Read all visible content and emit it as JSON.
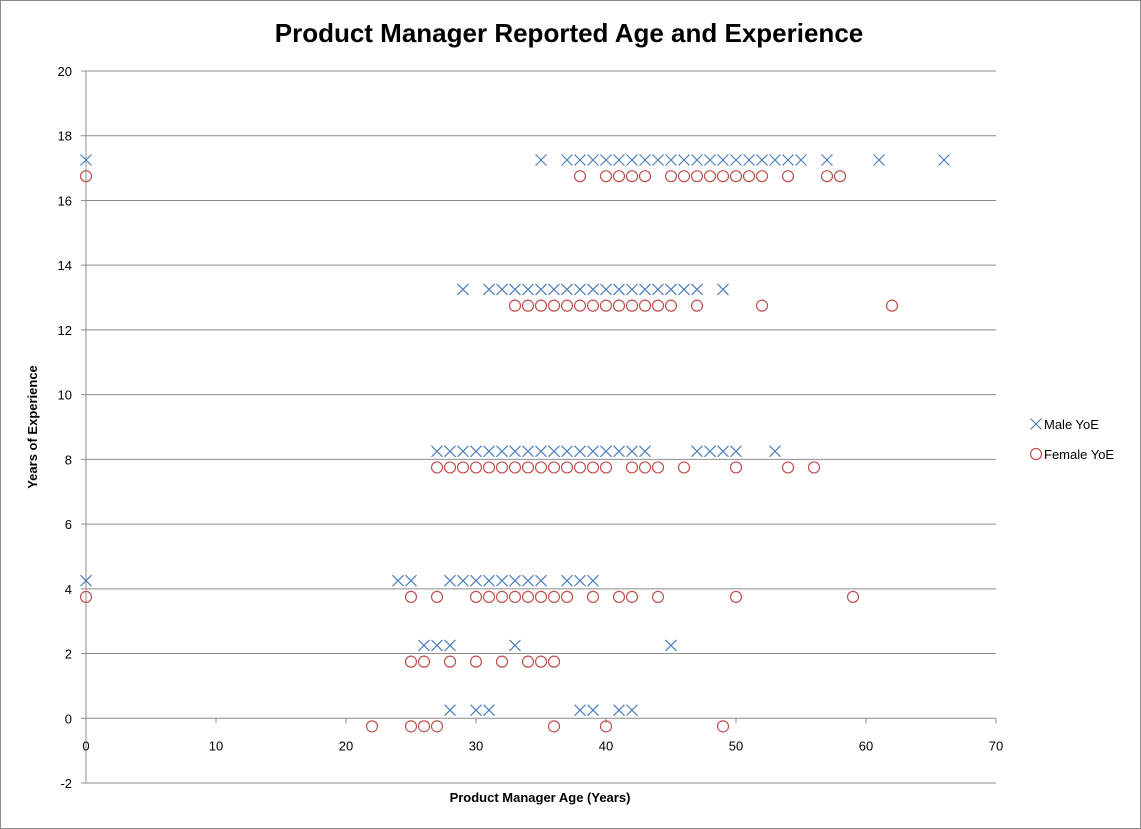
{
  "chart_data": {
    "type": "scatter",
    "title": "Product Manager Reported Age and Experience",
    "xlabel": "Product Manager Age (Years)",
    "ylabel": "Years of Experience",
    "xlim": [
      0,
      70
    ],
    "ylim": [
      -2,
      20
    ],
    "x_ticks": [
      0,
      10,
      20,
      30,
      40,
      50,
      60,
      70
    ],
    "y_ticks": [
      -2,
      0,
      2,
      4,
      6,
      8,
      10,
      12,
      14,
      16,
      18,
      20
    ],
    "grid": "horizontal",
    "legend_position": "right",
    "colors": {
      "male": "#4f81bd",
      "female": "#c0504d"
    },
    "series": [
      {
        "name": "Male YoE",
        "marker": "x",
        "points": [
          [
            0,
            17.25
          ],
          [
            35,
            17.25
          ],
          [
            37,
            17.25
          ],
          [
            38,
            17.25
          ],
          [
            39,
            17.25
          ],
          [
            40,
            17.25
          ],
          [
            41,
            17.25
          ],
          [
            42,
            17.25
          ],
          [
            43,
            17.25
          ],
          [
            44,
            17.25
          ],
          [
            45,
            17.25
          ],
          [
            46,
            17.25
          ],
          [
            47,
            17.25
          ],
          [
            48,
            17.25
          ],
          [
            49,
            17.25
          ],
          [
            50,
            17.25
          ],
          [
            51,
            17.25
          ],
          [
            52,
            17.25
          ],
          [
            53,
            17.25
          ],
          [
            54,
            17.25
          ],
          [
            55,
            17.25
          ],
          [
            57,
            17.25
          ],
          [
            61,
            17.25
          ],
          [
            66,
            17.25
          ],
          [
            29,
            13.25
          ],
          [
            31,
            13.25
          ],
          [
            32,
            13.25
          ],
          [
            33,
            13.25
          ],
          [
            34,
            13.25
          ],
          [
            35,
            13.25
          ],
          [
            36,
            13.25
          ],
          [
            37,
            13.25
          ],
          [
            38,
            13.25
          ],
          [
            39,
            13.25
          ],
          [
            40,
            13.25
          ],
          [
            41,
            13.25
          ],
          [
            42,
            13.25
          ],
          [
            43,
            13.25
          ],
          [
            44,
            13.25
          ],
          [
            45,
            13.25
          ],
          [
            46,
            13.25
          ],
          [
            47,
            13.25
          ],
          [
            49,
            13.25
          ],
          [
            27,
            8.25
          ],
          [
            28,
            8.25
          ],
          [
            29,
            8.25
          ],
          [
            30,
            8.25
          ],
          [
            31,
            8.25
          ],
          [
            32,
            8.25
          ],
          [
            33,
            8.25
          ],
          [
            34,
            8.25
          ],
          [
            35,
            8.25
          ],
          [
            36,
            8.25
          ],
          [
            37,
            8.25
          ],
          [
            38,
            8.25
          ],
          [
            39,
            8.25
          ],
          [
            40,
            8.25
          ],
          [
            41,
            8.25
          ],
          [
            42,
            8.25
          ],
          [
            43,
            8.25
          ],
          [
            47,
            8.25
          ],
          [
            48,
            8.25
          ],
          [
            49,
            8.25
          ],
          [
            50,
            8.25
          ],
          [
            53,
            8.25
          ],
          [
            0,
            4.25
          ],
          [
            24,
            4.25
          ],
          [
            25,
            4.25
          ],
          [
            28,
            4.25
          ],
          [
            29,
            4.25
          ],
          [
            30,
            4.25
          ],
          [
            31,
            4.25
          ],
          [
            32,
            4.25
          ],
          [
            33,
            4.25
          ],
          [
            34,
            4.25
          ],
          [
            35,
            4.25
          ],
          [
            37,
            4.25
          ],
          [
            38,
            4.25
          ],
          [
            39,
            4.25
          ],
          [
            26,
            2.25
          ],
          [
            27,
            2.25
          ],
          [
            28,
            2.25
          ],
          [
            33,
            2.25
          ],
          [
            45,
            2.25
          ],
          [
            28,
            0.25
          ],
          [
            30,
            0.25
          ],
          [
            31,
            0.25
          ],
          [
            38,
            0.25
          ],
          [
            39,
            0.25
          ],
          [
            41,
            0.25
          ],
          [
            42,
            0.25
          ]
        ]
      },
      {
        "name": "Female YoE",
        "marker": "circle",
        "points": [
          [
            0,
            16.75
          ],
          [
            38,
            16.75
          ],
          [
            40,
            16.75
          ],
          [
            41,
            16.75
          ],
          [
            42,
            16.75
          ],
          [
            43,
            16.75
          ],
          [
            45,
            16.75
          ],
          [
            46,
            16.75
          ],
          [
            47,
            16.75
          ],
          [
            48,
            16.75
          ],
          [
            49,
            16.75
          ],
          [
            50,
            16.75
          ],
          [
            51,
            16.75
          ],
          [
            52,
            16.75
          ],
          [
            54,
            16.75
          ],
          [
            57,
            16.75
          ],
          [
            58,
            16.75
          ],
          [
            33,
            12.75
          ],
          [
            34,
            12.75
          ],
          [
            35,
            12.75
          ],
          [
            36,
            12.75
          ],
          [
            37,
            12.75
          ],
          [
            38,
            12.75
          ],
          [
            39,
            12.75
          ],
          [
            40,
            12.75
          ],
          [
            41,
            12.75
          ],
          [
            42,
            12.75
          ],
          [
            43,
            12.75
          ],
          [
            44,
            12.75
          ],
          [
            45,
            12.75
          ],
          [
            47,
            12.75
          ],
          [
            52,
            12.75
          ],
          [
            62,
            12.75
          ],
          [
            27,
            7.75
          ],
          [
            28,
            7.75
          ],
          [
            29,
            7.75
          ],
          [
            30,
            7.75
          ],
          [
            31,
            7.75
          ],
          [
            32,
            7.75
          ],
          [
            33,
            7.75
          ],
          [
            34,
            7.75
          ],
          [
            35,
            7.75
          ],
          [
            36,
            7.75
          ],
          [
            37,
            7.75
          ],
          [
            38,
            7.75
          ],
          [
            39,
            7.75
          ],
          [
            40,
            7.75
          ],
          [
            42,
            7.75
          ],
          [
            43,
            7.75
          ],
          [
            44,
            7.75
          ],
          [
            46,
            7.75
          ],
          [
            50,
            7.75
          ],
          [
            54,
            7.75
          ],
          [
            56,
            7.75
          ],
          [
            0,
            3.75
          ],
          [
            25,
            3.75
          ],
          [
            27,
            3.75
          ],
          [
            30,
            3.75
          ],
          [
            31,
            3.75
          ],
          [
            32,
            3.75
          ],
          [
            33,
            3.75
          ],
          [
            34,
            3.75
          ],
          [
            35,
            3.75
          ],
          [
            36,
            3.75
          ],
          [
            37,
            3.75
          ],
          [
            39,
            3.75
          ],
          [
            41,
            3.75
          ],
          [
            42,
            3.75
          ],
          [
            44,
            3.75
          ],
          [
            50,
            3.75
          ],
          [
            59,
            3.75
          ],
          [
            25,
            1.75
          ],
          [
            26,
            1.75
          ],
          [
            28,
            1.75
          ],
          [
            30,
            1.75
          ],
          [
            32,
            1.75
          ],
          [
            34,
            1.75
          ],
          [
            35,
            1.75
          ],
          [
            36,
            1.75
          ],
          [
            22,
            -0.25
          ],
          [
            25,
            -0.25
          ],
          [
            26,
            -0.25
          ],
          [
            27,
            -0.25
          ],
          [
            36,
            -0.25
          ],
          [
            40,
            -0.25
          ],
          [
            49,
            -0.25
          ]
        ]
      }
    ]
  }
}
